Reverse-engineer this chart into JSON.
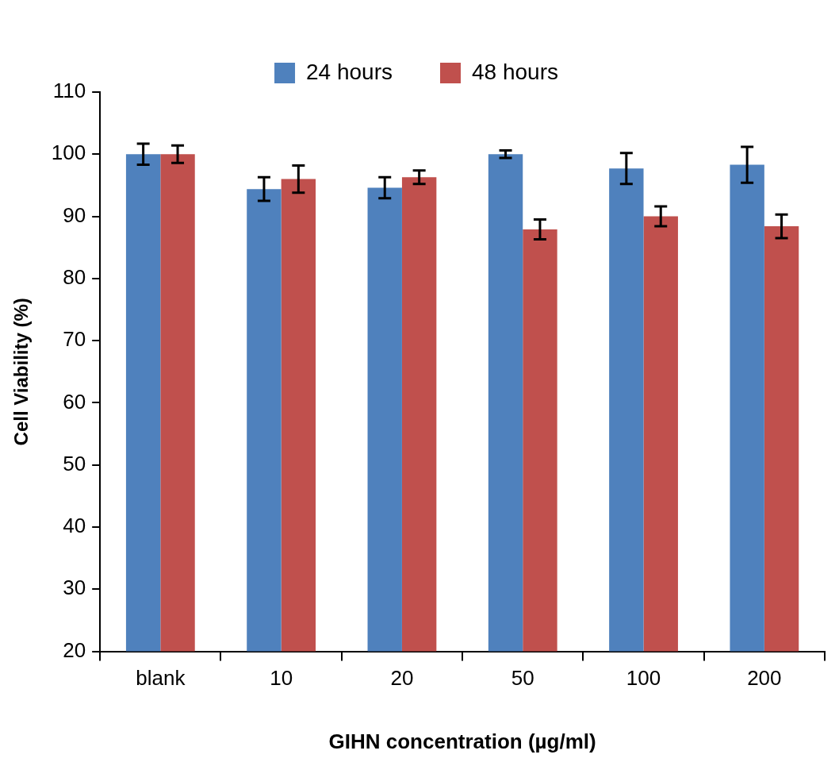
{
  "chart_data": {
    "type": "bar",
    "xlabel": "GIHN concentration (µg/ml)",
    "ylabel": "Cell Viability (%)",
    "categories": [
      "blank",
      "10",
      "20",
      "50",
      "100",
      "200"
    ],
    "series": [
      {
        "name": "24 hours",
        "color": "#4f81bd",
        "values": [
          100,
          94.4,
          94.6,
          100,
          97.7,
          98.3
        ],
        "errors": [
          1.7,
          1.9,
          1.7,
          0.6,
          2.5,
          2.9
        ]
      },
      {
        "name": "48 hours",
        "color": "#c0504d",
        "values": [
          100,
          96.0,
          96.3,
          87.9,
          90.0,
          88.4
        ],
        "errors": [
          1.4,
          2.2,
          1.1,
          1.6,
          1.6,
          1.9
        ]
      }
    ],
    "ylim": [
      20,
      110
    ],
    "yticks": [
      20,
      30,
      40,
      50,
      60,
      70,
      80,
      90,
      100,
      110
    ],
    "grid": false,
    "legend": "top"
  }
}
